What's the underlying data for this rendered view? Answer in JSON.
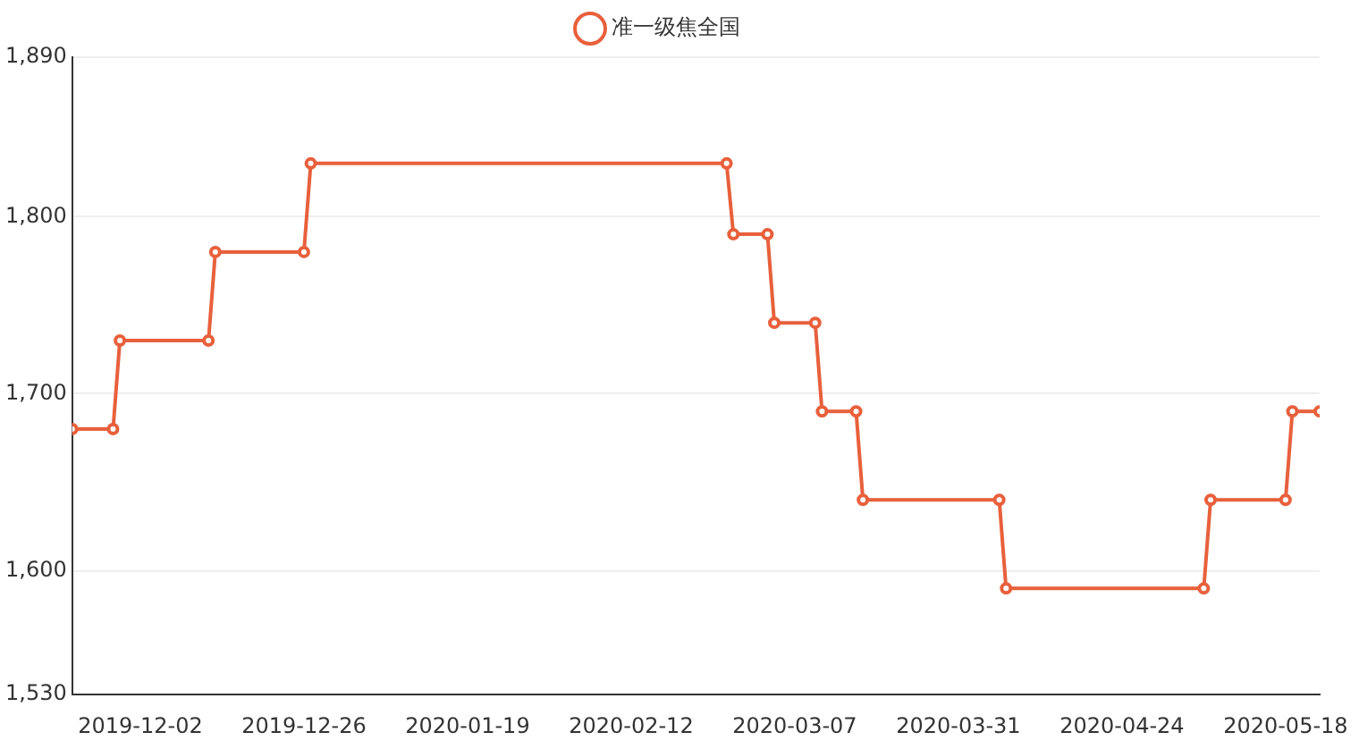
{
  "chart_data": {
    "type": "line",
    "x": [
      "2019-11-22",
      "2019-11-28",
      "2019-11-29",
      "2019-12-12",
      "2019-12-13",
      "2019-12-26",
      "2019-12-27",
      "2020-02-26",
      "2020-02-27",
      "2020-03-03",
      "2020-03-04",
      "2020-03-10",
      "2020-03-11",
      "2020-03-16",
      "2020-03-17",
      "2020-04-06",
      "2020-04-07",
      "2020-05-06",
      "2020-05-07",
      "2020-05-18",
      "2020-05-19",
      "2020-05-23"
    ],
    "series": [
      {
        "name": "准一级焦全国",
        "color": "#e8603c",
        "values": [
          1680,
          1680,
          1730,
          1730,
          1780,
          1780,
          1830,
          1830,
          1790,
          1790,
          1740,
          1740,
          1690,
          1690,
          1640,
          1640,
          1590,
          1590,
          1640,
          1640,
          1690,
          1690
        ]
      }
    ],
    "xlim": [
      "2019-11-22",
      "2020-05-23"
    ],
    "xticks": [
      {
        "value": "2019-12-02",
        "label": "2019-12-02"
      },
      {
        "value": "2019-12-26",
        "label": "2019-12-26"
      },
      {
        "value": "2020-01-19",
        "label": "2020-01-19"
      },
      {
        "value": "2020-02-12",
        "label": "2020-02-12"
      },
      {
        "value": "2020-03-07",
        "label": "2020-03-07"
      },
      {
        "value": "2020-03-31",
        "label": "2020-03-31"
      },
      {
        "value": "2020-04-24",
        "label": "2020-04-24"
      },
      {
        "value": "2020-05-18",
        "label": "2020-05-18"
      }
    ],
    "ylim": [
      1530,
      1890
    ],
    "yticks": [
      {
        "value": 1530,
        "label": "1,530"
      },
      {
        "value": 1600,
        "label": "1,600"
      },
      {
        "value": 1700,
        "label": "1,700"
      },
      {
        "value": 1800,
        "label": "1,800"
      },
      {
        "value": 1890,
        "label": "1,890"
      }
    ],
    "grid": "y",
    "legend": "top",
    "marker": "circle",
    "line_style": "solid"
  }
}
